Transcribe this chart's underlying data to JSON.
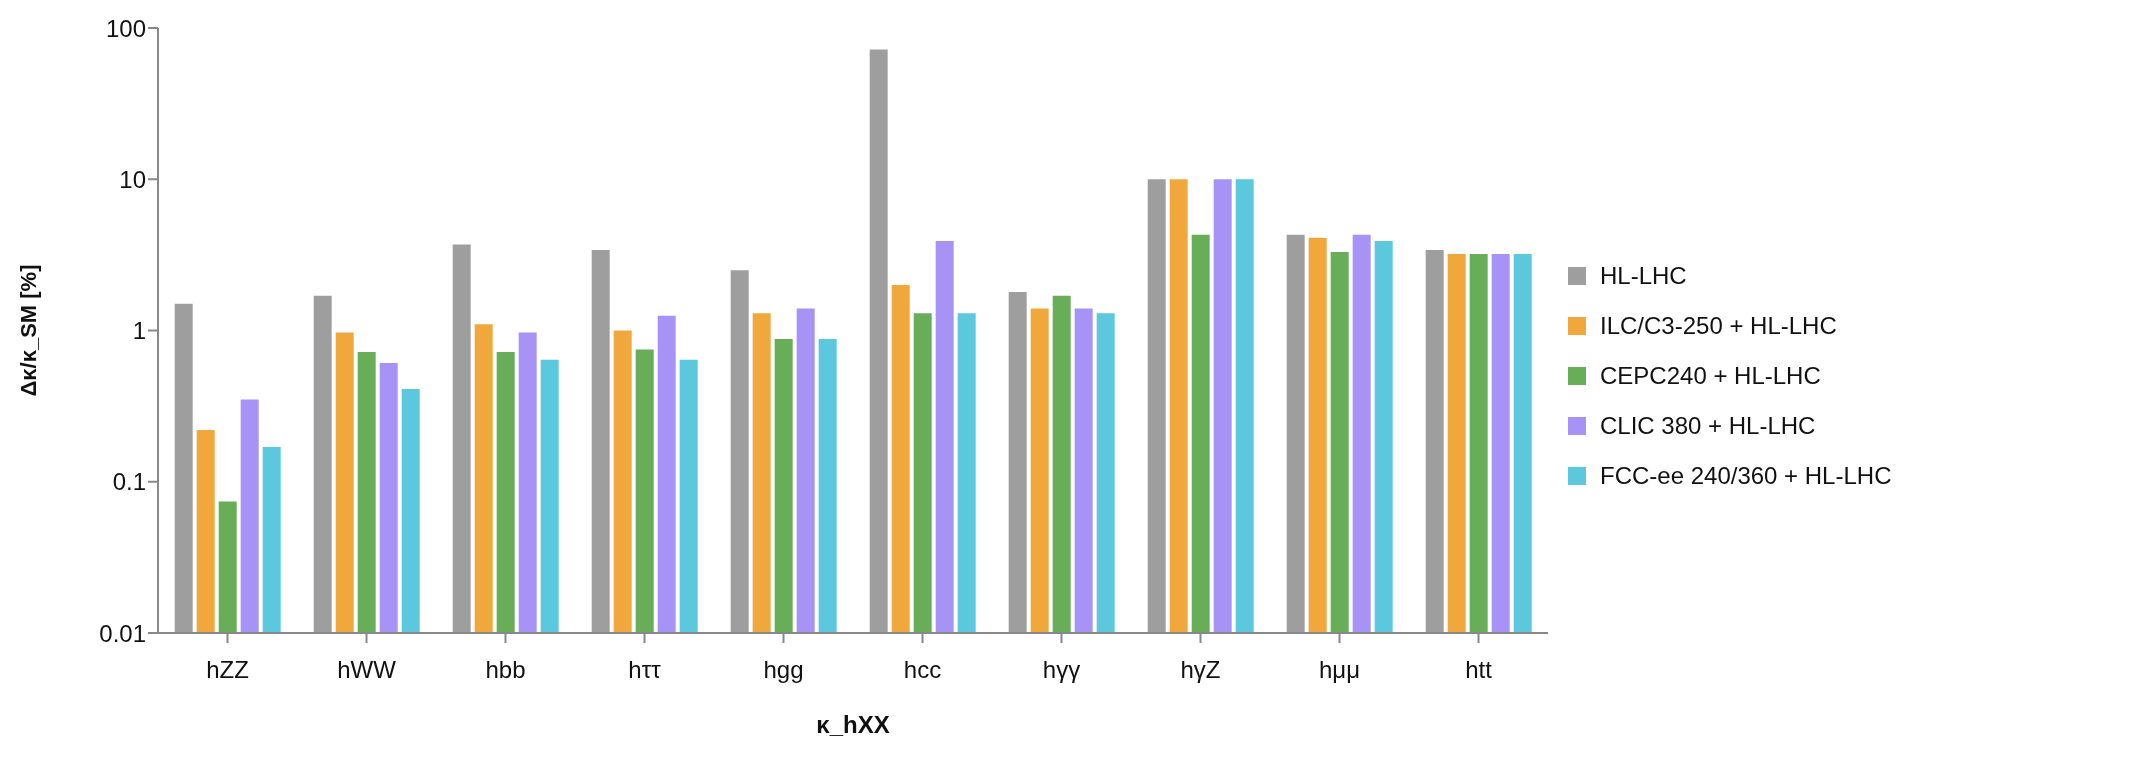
{
  "chart_data": {
    "type": "bar",
    "xlabel": "κ_hXX",
    "ylabel": "Δκ/κ_SM [%]",
    "categories": [
      "hZZ",
      "hWW",
      "hbb",
      "hττ",
      "hgg",
      "hcc",
      "hγγ",
      "hγZ",
      "hμμ",
      "htt"
    ],
    "series": [
      {
        "name": "HL-LHC",
        "color": "#9e9e9e",
        "values": [
          1.5,
          1.7,
          3.7,
          3.4,
          2.5,
          72,
          1.8,
          10,
          4.3,
          3.4
        ]
      },
      {
        "name": "ILC/C3-250 + HL-LHC",
        "color": "#f0a83c",
        "values": [
          0.22,
          0.97,
          1.1,
          1.0,
          1.3,
          2.0,
          1.4,
          10,
          4.1,
          3.2
        ]
      },
      {
        "name": "CEPC240 + HL-LHC",
        "color": "#68ad57",
        "values": [
          0.074,
          0.72,
          0.72,
          0.75,
          0.88,
          1.3,
          1.7,
          4.3,
          3.3,
          3.2
        ]
      },
      {
        "name": "CLIC 380 + HL-LHC",
        "color": "#a693f5",
        "values": [
          0.35,
          0.61,
          0.97,
          1.25,
          1.4,
          3.9,
          1.4,
          10,
          4.3,
          3.2
        ]
      },
      {
        "name": "FCC-ee 240/360 + HL-LHC",
        "color": "#5bc8de",
        "values": [
          0.17,
          0.41,
          0.64,
          0.64,
          0.88,
          1.3,
          1.3,
          10,
          3.9,
          3.2
        ]
      }
    ],
    "log": true,
    "ylim": [
      0.01,
      100
    ],
    "yticks": [
      0.01,
      0.1,
      1,
      10,
      100
    ],
    "grid": false,
    "legend": "right"
  }
}
